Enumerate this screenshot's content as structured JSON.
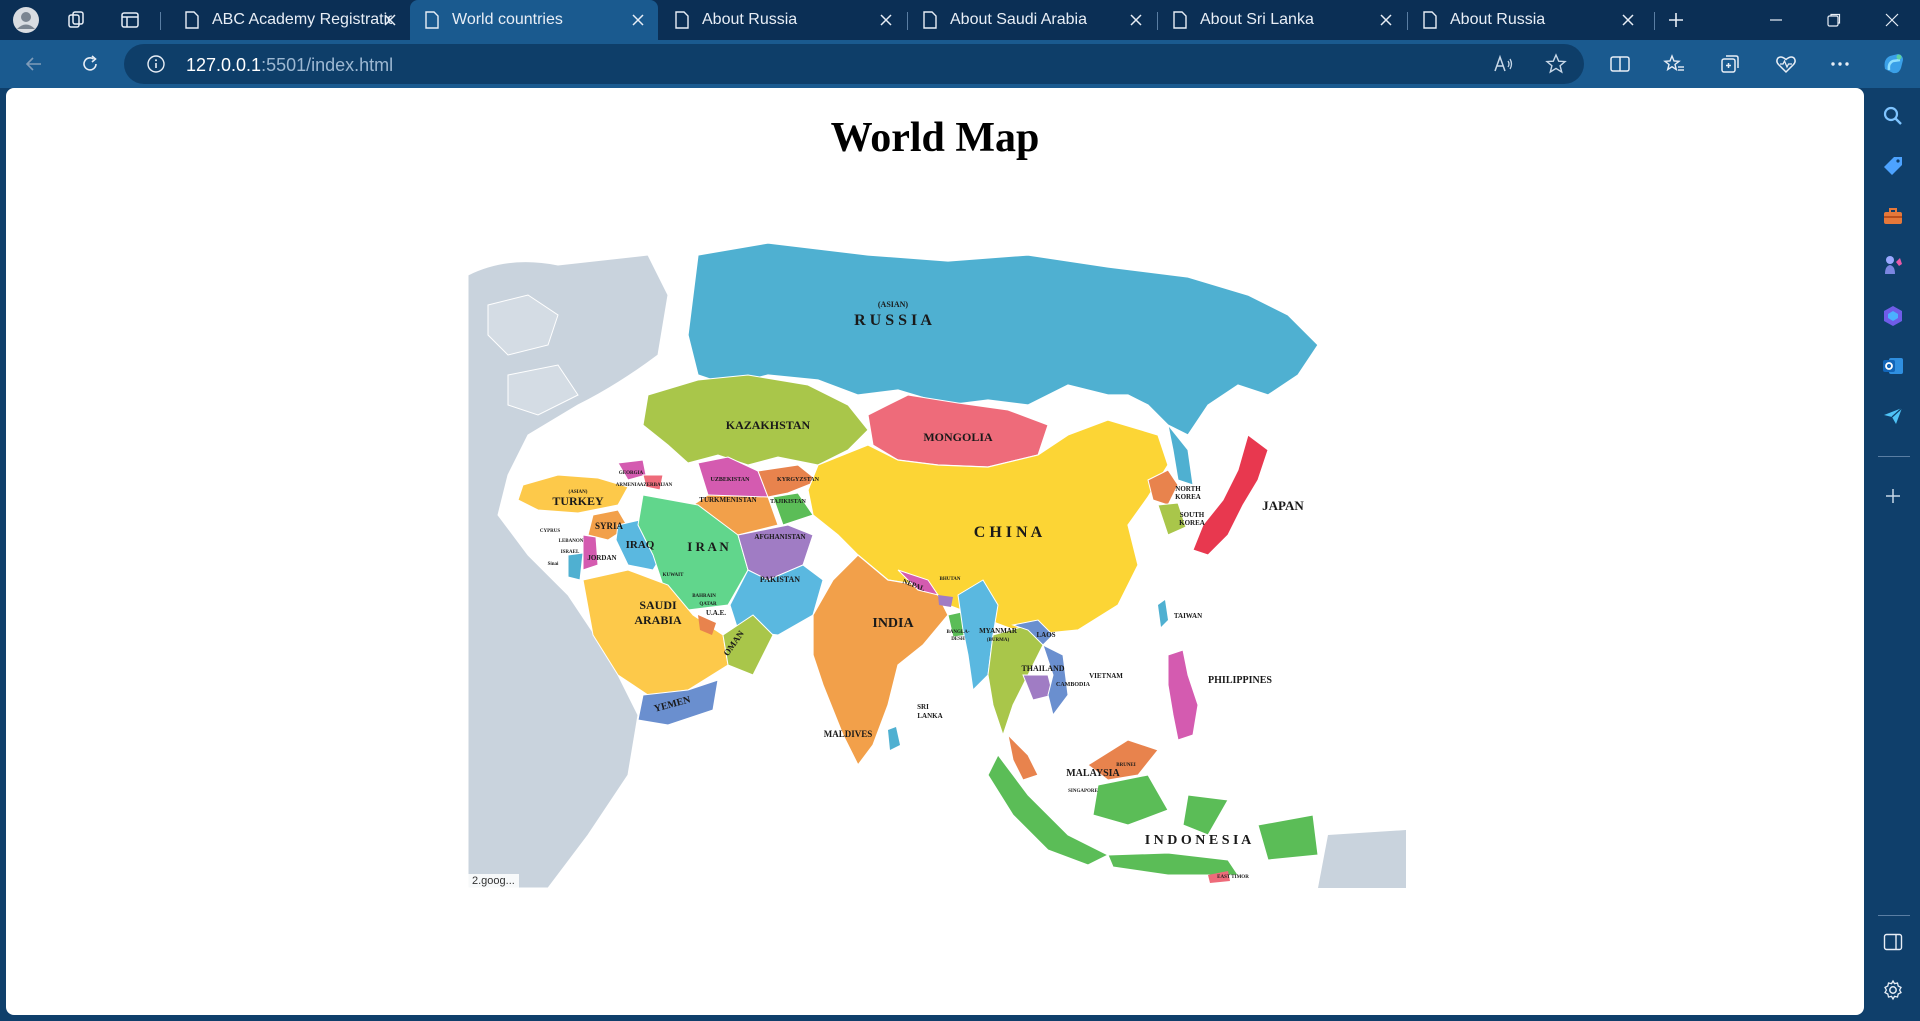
{
  "browser": {
    "tabs": [
      {
        "title": "ABC Academy Registration",
        "active": false
      },
      {
        "title": "World countries",
        "active": true
      },
      {
        "title": "About Russia",
        "active": false
      },
      {
        "title": "About Saudi Arabia",
        "active": false
      },
      {
        "title": "About Sri Lanka",
        "active": false
      },
      {
        "title": "About Russia",
        "active": false
      }
    ],
    "url_host": "127.0.0.1",
    "url_path": ":5501/index.html"
  },
  "page": {
    "title": "World Map",
    "map_credit": "2.goog..."
  },
  "map": {
    "labels": {
      "russia_sub": "(ASIAN)",
      "russia": "R U S S I A",
      "kazakhstan": "KAZAKHSTAN",
      "mongolia": "MONGOLIA",
      "china": "C H I N A",
      "japan": "JAPAN",
      "north_korea_1": "NORTH",
      "north_korea_2": "KOREA",
      "south_korea_1": "SOUTH",
      "south_korea_2": "KOREA",
      "uzbekistan": "UZBEKISTAN",
      "kyrgyzstan": "KYRGYZSTAN",
      "turkmenistan": "TURKMENISTAN",
      "tajikistan": "TAJIKISTAN",
      "georgia": "GEORGIA",
      "armenia": "ARMENIA",
      "azerbaijan": "AZERBAIJAN",
      "turkey_sub": "(ASIAN)",
      "turkey": "TURKEY",
      "syria": "SYRIA",
      "cyprus": "CYPRUS",
      "lebanon": "LEBANON",
      "israel": "ISRAEL",
      "jordan": "JORDAN",
      "iraq": "IRAQ",
      "iran": "I R A N",
      "afghanistan": "AFGHANISTAN",
      "pakistan": "PAKISTAN",
      "kuwait": "KUWAIT",
      "bahrain": "BAHRAIN",
      "qatar": "QATAR",
      "uae": "U.A.E.",
      "saudi_1": "SAUDI",
      "saudi_2": "ARABIA",
      "oman": "OMAN",
      "yemen": "YEMEN",
      "india": "INDIA",
      "nepal": "NEPAL",
      "bhutan": "BHUTAN",
      "bangladesh_1": "BANGLA-",
      "bangladesh_2": "DESH",
      "myanmar_1": "MYANMAR",
      "myanmar_2": "(BURMA)",
      "laos": "LAOS",
      "thailand": "THAILAND",
      "cambodia": "CAMBODIA",
      "vietnam": "VIETNAM",
      "taiwan": "TAIWAN",
      "philippines": "PHILIPPINES",
      "sri_lanka_1": "SRI",
      "sri_lanka_2": "LANKA",
      "maldives": "MALDIVES",
      "brunei": "BRUNEI",
      "malaysia": "MALAYSIA",
      "singapore": "SINGAPORE",
      "indonesia": "I N D O N E S I A",
      "east_timor": "EAST TIMOR",
      "sinai": "Sinai"
    },
    "colors": {
      "russia": "#4fb0d1",
      "kazakhstan": "#a9c64a",
      "mongolia": "#ee6b7a",
      "china": "#fcd535",
      "japan": "#e8384f",
      "iran": "#61d68c",
      "saudi": "#fdc94a",
      "india": "#f2a04a",
      "indonesia": "#5bbd57",
      "other_land": "#c9d3dd"
    }
  }
}
